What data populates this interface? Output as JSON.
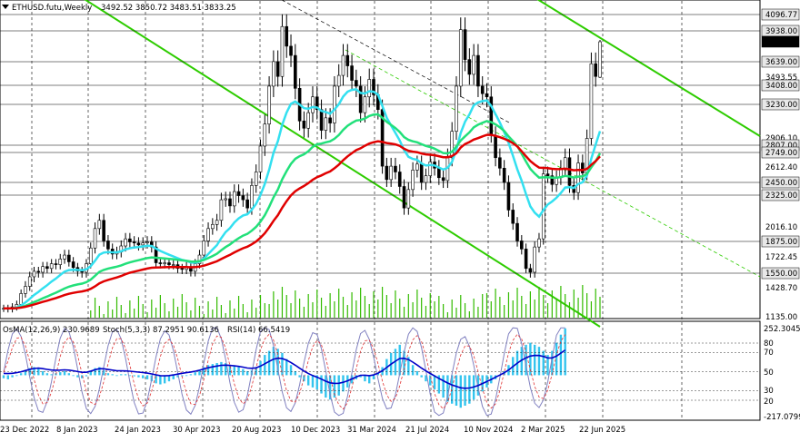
{
  "window": {
    "symbol_title": "ETHUSD.futu,Weekly",
    "ohlc": "3492.52 3850.72 3483.51 3833.25",
    "osma_label": "OsMA(12,26,9) 230.9689",
    "stoch_label": "Stoch(5,3,3) 87.2951 90.6136",
    "rsi_label": "RSI(14) 66.5419"
  },
  "colors": {
    "price_bar": "#000000",
    "ema_fast": "#33e0f0",
    "ema_mid": "#22e07a",
    "ema_slow": "#e00000",
    "trend_line": "#2ecc00",
    "volume": "#33bb00",
    "osma_hist": "#33c4ee",
    "stoch_main": "#8080c0",
    "stoch_signal": "#e03030",
    "rsi": "#0000c8"
  },
  "chart_data": [
    {
      "type": "candlestick",
      "title": "ETHUSD.futu,Weekly",
      "x": [
        "23 Dec 2022",
        "8 Jan 2023",
        "24 Jan 2023",
        "30 Apr 2023",
        "20 Aug 2023",
        "10 Dec 2023",
        "31 Mar 2024",
        "21 Jul 2024",
        "10 Nov 2024",
        "2 Mar 2025",
        "22 Jun 2025"
      ],
      "last_bar": {
        "open": 3492.52,
        "high": 3850.72,
        "low": 3483.51,
        "close": 3833.25
      },
      "y_ticks": [
        4096.77,
        3938.0,
        3833.25,
        3639.0,
        3493.55,
        3408.0,
        3230.0,
        2906.1,
        2807.0,
        2749.0,
        2612.4,
        2450.0,
        2325.0,
        2016.1,
        1875.0,
        1722.45,
        1550.0,
        1428.7,
        1135.0
      ],
      "highlighted_levels": [
        4096.77,
        3938.0,
        3639.0,
        3408.0,
        3230.0,
        2807.0,
        2749.0,
        2450.0,
        2325.0,
        1875.0,
        1550.0
      ],
      "current_price": 3833.25,
      "ylim": [
        1135.0,
        4250.0
      ],
      "close_series": [
        1220,
        1215,
        1235,
        1260,
        1370,
        1440,
        1520,
        1570,
        1560,
        1620,
        1600,
        1650,
        1640,
        1700,
        1740,
        1670,
        1610,
        1570,
        1560,
        1650,
        1810,
        2000,
        2080,
        1880,
        1800,
        1750,
        1770,
        1830,
        1900,
        1870,
        1860,
        1840,
        1860,
        1870,
        1820,
        1660,
        1650,
        1660,
        1640,
        1640,
        1600,
        1590,
        1620,
        1570,
        1650,
        1740,
        1880,
        2000,
        2040,
        2080,
        2280,
        2290,
        2220,
        2360,
        2320,
        2280,
        2200,
        2420,
        2560,
        2800,
        3040,
        3400,
        3640,
        3500,
        3980,
        3790,
        3700,
        3380,
        3070,
        3000,
        3150,
        3300,
        3180,
        2980,
        3100,
        3050,
        3400,
        3510,
        3700,
        3600,
        3460,
        3400,
        3150,
        3300,
        3470,
        3320,
        3180,
        2620,
        2480,
        2620,
        2560,
        2410,
        2200,
        2380,
        2580,
        2640,
        2450,
        2520,
        2660,
        2600,
        2500,
        2470,
        2700,
        2970,
        3400,
        3950,
        3660,
        3520,
        3700,
        3400,
        3330,
        3300,
        2930,
        2700,
        2600,
        2450,
        2180,
        2050,
        1880,
        1800,
        1600,
        1560,
        1820,
        1900,
        2540,
        2520,
        2430,
        2500,
        2600,
        2700,
        2420,
        2350,
        2650,
        2550,
        2900,
        3620,
        3500,
        3833.25
      ]
    },
    {
      "type": "histogram",
      "title": "OsMA(12,26,9) 230.9689",
      "current_value": 230.9689,
      "y_ticks": [
        252.3045,
        80,
        70,
        50,
        30,
        20,
        -217.0799
      ],
      "ylim": [
        -217.0799,
        252.3045
      ],
      "values": [
        -15,
        -20,
        -10,
        0,
        10,
        25,
        35,
        40,
        35,
        20,
        10,
        5,
        10,
        15,
        20,
        10,
        0,
        -10,
        -15,
        -5,
        20,
        35,
        40,
        25,
        10,
        5,
        0,
        5,
        5,
        0,
        -5,
        -10,
        -15,
        -20,
        -30,
        -40,
        -45,
        -40,
        -30,
        -20,
        -10,
        -5,
        0,
        5,
        15,
        25,
        40,
        50,
        55,
        60,
        65,
        60,
        50,
        45,
        40,
        30,
        20,
        25,
        40,
        70,
        100,
        120,
        140,
        130,
        110,
        80,
        50,
        20,
        -10,
        -30,
        -50,
        -60,
        -70,
        -90,
        -110,
        -120,
        -110,
        -100,
        -80,
        -60,
        -40,
        -20,
        -10,
        -30,
        -40,
        -20,
        10,
        40,
        80,
        110,
        130,
        150,
        120,
        90,
        50,
        20,
        -10,
        -30,
        -50,
        -70,
        -90,
        -110,
        -130,
        -140,
        -150,
        -160,
        -150,
        -140,
        -120,
        -100,
        -80,
        -60,
        -40,
        -20,
        0,
        20,
        50,
        90,
        120,
        140,
        150,
        160,
        150,
        140,
        120,
        100,
        120,
        160,
        200,
        230.9689
      ]
    },
    {
      "type": "line",
      "title": "Stoch(5,3,3) 87.2951 90.6136",
      "series": [
        {
          "name": "Stoch main",
          "last": 87.2951
        },
        {
          "name": "Stoch signal",
          "last": 90.6136
        }
      ],
      "levels": [
        80,
        70,
        50,
        30,
        20
      ]
    },
    {
      "type": "line",
      "title": "RSI(14) 66.5419",
      "series": [
        {
          "name": "RSI(14)",
          "last": 66.5419
        }
      ]
    }
  ]
}
